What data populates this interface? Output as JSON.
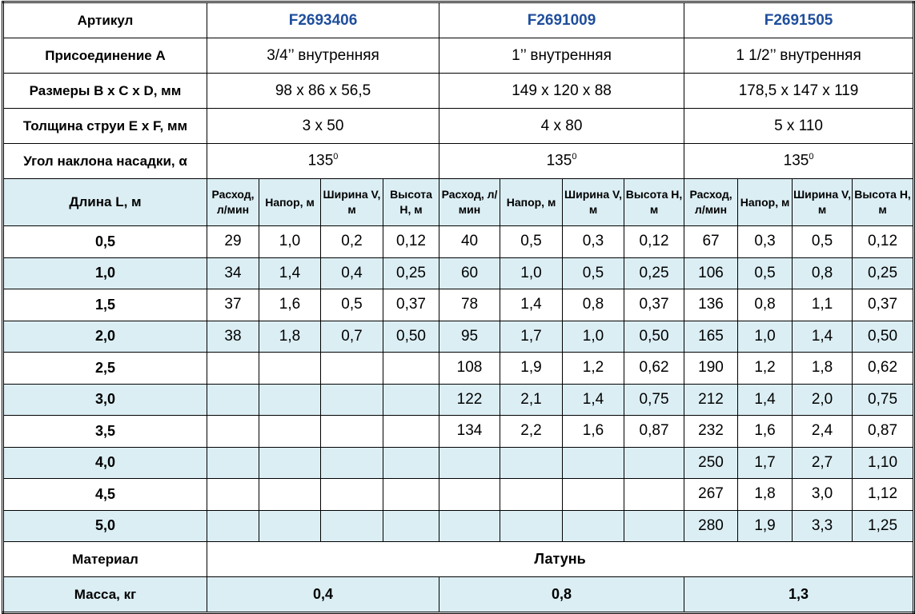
{
  "header": {
    "label": "Артикул",
    "skus": [
      "F2693406",
      "F2691009",
      "F2691505"
    ]
  },
  "spec_rows": [
    {
      "label": "Присоединение A",
      "values": [
        "3/4’’ внутренняя",
        "1’’ внутренняя",
        "1 1/2’’ внутренняя"
      ]
    },
    {
      "label": "Размеры B x C x D, мм",
      "values": [
        "98 x 86 x 56,5",
        "149 x 120 x 88",
        "178,5 x 147 x 119"
      ]
    },
    {
      "label": "Толщина струи E x F, мм",
      "values": [
        "3 x 50",
        "4 x 80",
        "5 x 110"
      ]
    }
  ],
  "angle_row": {
    "label": "Угол наклона насадки, α",
    "value": "135",
    "sup": "0"
  },
  "subheader": {
    "label": "Длина L, м",
    "columns": [
      "Расход, л/мин",
      "Напор, м",
      "Ширина V, м",
      "Высота H, м"
    ]
  },
  "data_rows": [
    {
      "length": "0,5",
      "cells": [
        "29",
        "1,0",
        "0,2",
        "0,12",
        "40",
        "0,5",
        "0,3",
        "0,12",
        "67",
        "0,3",
        "0,5",
        "0,12"
      ]
    },
    {
      "length": "1,0",
      "cells": [
        "34",
        "1,4",
        "0,4",
        "0,25",
        "60",
        "1,0",
        "0,5",
        "0,25",
        "106",
        "0,5",
        "0,8",
        "0,25"
      ]
    },
    {
      "length": "1,5",
      "cells": [
        "37",
        "1,6",
        "0,5",
        "0,37",
        "78",
        "1,4",
        "0,8",
        "0,37",
        "136",
        "0,8",
        "1,1",
        "0,37"
      ]
    },
    {
      "length": "2,0",
      "cells": [
        "38",
        "1,8",
        "0,7",
        "0,50",
        "95",
        "1,7",
        "1,0",
        "0,50",
        "165",
        "1,0",
        "1,4",
        "0,50"
      ]
    },
    {
      "length": "2,5",
      "cells": [
        "",
        "",
        "",
        "",
        "108",
        "1,9",
        "1,2",
        "0,62",
        "190",
        "1,2",
        "1,8",
        "0,62"
      ]
    },
    {
      "length": "3,0",
      "cells": [
        "",
        "",
        "",
        "",
        "122",
        "2,1",
        "1,4",
        "0,75",
        "212",
        "1,4",
        "2,0",
        "0,75"
      ]
    },
    {
      "length": "3,5",
      "cells": [
        "",
        "",
        "",
        "",
        "134",
        "2,2",
        "1,6",
        "0,87",
        "232",
        "1,6",
        "2,4",
        "0,87"
      ]
    },
    {
      "length": "4,0",
      "cells": [
        "",
        "",
        "",
        "",
        "",
        "",
        "",
        "",
        "250",
        "1,7",
        "2,7",
        "1,10"
      ]
    },
    {
      "length": "4,5",
      "cells": [
        "",
        "",
        "",
        "",
        "",
        "",
        "",
        "",
        "267",
        "1,8",
        "3,0",
        "1,12"
      ]
    },
    {
      "length": "5,0",
      "cells": [
        "",
        "",
        "",
        "",
        "",
        "",
        "",
        "",
        "280",
        "1,9",
        "3,3",
        "1,25"
      ]
    }
  ],
  "material": {
    "label": "Материал",
    "value": "Латунь"
  },
  "mass": {
    "label": "Масса, кг",
    "values": [
      "0,4",
      "0,8",
      "1,3"
    ]
  },
  "colors": {
    "row_highlight": "#dbeef4",
    "sku_text": "#1f4e9c",
    "border": "#000000"
  }
}
